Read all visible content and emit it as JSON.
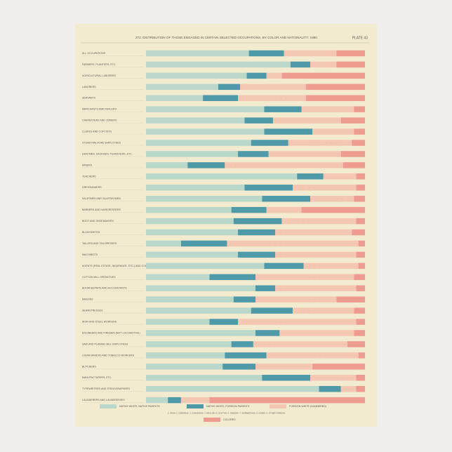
{
  "chart_data": {
    "type": "bar",
    "orientation": "horizontal",
    "stacked": true,
    "title": "272. DISTRIBUTION OF THOSE ENGAGED IN CERTAIN SELECTED OCCUPATIONS, BY COLOR AND NATIONALITY: 1890.",
    "plate": "PLATE 43",
    "categories": [
      "ALL OCCUPATIONS",
      "FARMERS, PLANTERS, ETC.",
      "AGRICULTURAL LABORERS",
      "LABORERS",
      "SERVANTS",
      "MERCHANTS AND DEALERS",
      "CARPENTERS AND JOINERS",
      "CLERKS AND COPYISTS",
      "STEAM RAILROAD EMPLOYEES",
      "DRAYMEN, HACKMEN, TEAMSTERS, ETC.",
      "MINERS",
      "TEACHERS",
      "DRESSMAKERS",
      "SALESMEN AND SALESWOMEN",
      "BARBERS AND HAIRDRESSERS",
      "BOOT AND SHOEMAKERS",
      "BLACKSMITHS",
      "TAILORS AND TAILORESSES",
      "MACHINISTS",
      "AGENTS (REAL ESTATE, INSURANCE, ETC.) AND COLLECTORS",
      "COTTON MILL OPERATIVES",
      "BOOKKEEPERS AND ACCOUNTANTS",
      "MASONS",
      "SEAMSTRESSES",
      "IRON AND STEEL WORKERS",
      "ENGINEERS AND FIREMEN (NOT LOCOMOTIVE)",
      "SAW AND PLANING MILL EMPLOYEES",
      "CIGAR MAKERS AND TOBACCO WORKERS",
      "BUTCHERS",
      "MANUFACTURERS, ETC.",
      "TYPEWRITERS AND STENOGRAPHERS",
      "LAUNDERERS AND LAUNDRESSES"
    ],
    "series": [
      {
        "name": "NATIVE WHITE, NATIVE PARENTS",
        "color": "#b9d8c9",
        "values": [
          47,
          66,
          46,
          33,
          26,
          54,
          45,
          54,
          48,
          42,
          19,
          69,
          45,
          53,
          39,
          40,
          42,
          16,
          42,
          54,
          29,
          50,
          40,
          48,
          29,
          50,
          39,
          36,
          35,
          53,
          79,
          10
        ]
      },
      {
        "name": "NATIVE WHITE, FOREIGN PARENTS",
        "color": "#4f9aa9",
        "values": [
          16,
          9,
          9,
          10,
          16,
          17,
          13,
          22,
          17,
          14,
          17,
          12,
          22,
          22,
          16,
          22,
          17,
          21,
          17,
          18,
          21,
          9,
          10,
          19,
          13,
          11,
          10,
          19,
          15,
          22,
          10,
          6
        ]
      },
      {
        "name": "FOREIGN WHITE (NUMBERED)",
        "color": "#f4c7b3",
        "values": [
          24,
          12,
          7,
          30,
          31,
          24,
          31,
          19,
          29,
          33,
          54,
          15,
          29,
          20,
          16,
          34,
          35,
          60,
          37,
          25,
          45,
          37,
          37,
          28,
          54,
          34,
          43,
          42,
          26,
          21,
          7,
          13
        ]
      },
      {
        "name": "COLORED",
        "color": "#ee9c90",
        "values": [
          13,
          13,
          38,
          27,
          27,
          5,
          11,
          5,
          6,
          11,
          10,
          4,
          4,
          5,
          29,
          4,
          6,
          3,
          4,
          3,
          5,
          4,
          13,
          5,
          4,
          5,
          8,
          3,
          24,
          4,
          4,
          71
        ]
      }
    ],
    "xlim": [
      0,
      100
    ],
    "key_note": "1. IRISH. 2. GERMANS. 3. CANADIANS. 4. ENGLISH. 5. SCOTCH. 6. SWEDES. 7. NORWEGIANS. 8. DANES. 9. OTHER FOREIGN."
  }
}
